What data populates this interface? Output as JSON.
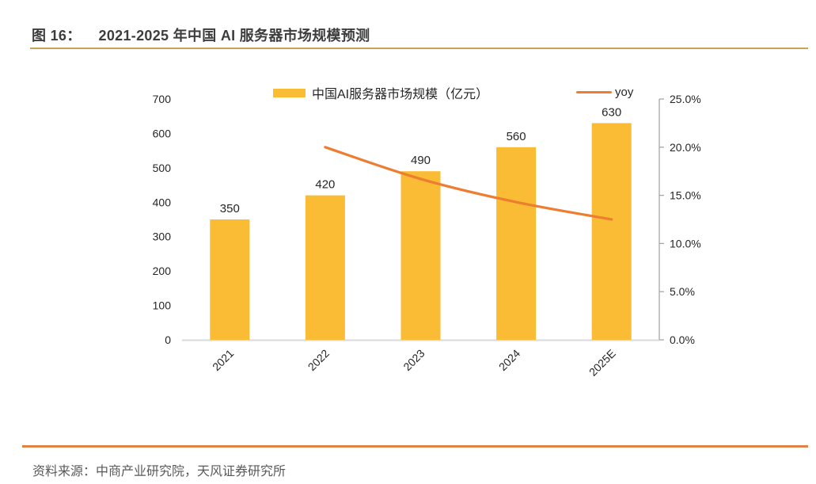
{
  "figure": {
    "label": "图 16：",
    "title": "2021-2025 年中国 AI 服务器市场规模预测"
  },
  "source_text": "资料来源：中商产业研究院，天风证券研究所",
  "colors": {
    "bar": "#F9BC34",
    "line": "#ED7D31",
    "title_rule_gold": "#C8A351",
    "bottom_rule_orange": "#DE8448",
    "axis_text": "#262626",
    "x_axis_line": "#D9D9D9",
    "right_axis_line": "#A6A6A6",
    "source_text": "#595959",
    "title_text": "#3D3D3D"
  },
  "chart_data": {
    "type": "bar",
    "title": "2021-2025 年中国 AI 服务器市场规模预测",
    "categories": [
      "2021",
      "2022",
      "2023",
      "2024",
      "2025E"
    ],
    "series": [
      {
        "name": "中国AI服务器市场规模（亿元）",
        "type": "bar",
        "axis": "left",
        "values": [
          350,
          420,
          490,
          560,
          630
        ],
        "labels": [
          "350",
          "420",
          "490",
          "560",
          "630"
        ],
        "color": "#F9BC34"
      },
      {
        "name": "yoy",
        "type": "line",
        "axis": "right",
        "values": [
          null,
          20.0,
          16.7,
          14.3,
          12.5
        ],
        "color": "#ED7D31"
      }
    ],
    "left_axis": {
      "min": 0,
      "max": 700,
      "step": 100,
      "ticks": [
        "0",
        "100",
        "200",
        "300",
        "400",
        "500",
        "600",
        "700"
      ]
    },
    "right_axis": {
      "min": 0,
      "max": 25,
      "step": 5,
      "ticks": [
        "0.0%",
        "5.0%",
        "10.0%",
        "15.0%",
        "20.0%",
        "25.0%"
      ]
    },
    "grid": false,
    "legend_position": "top"
  }
}
